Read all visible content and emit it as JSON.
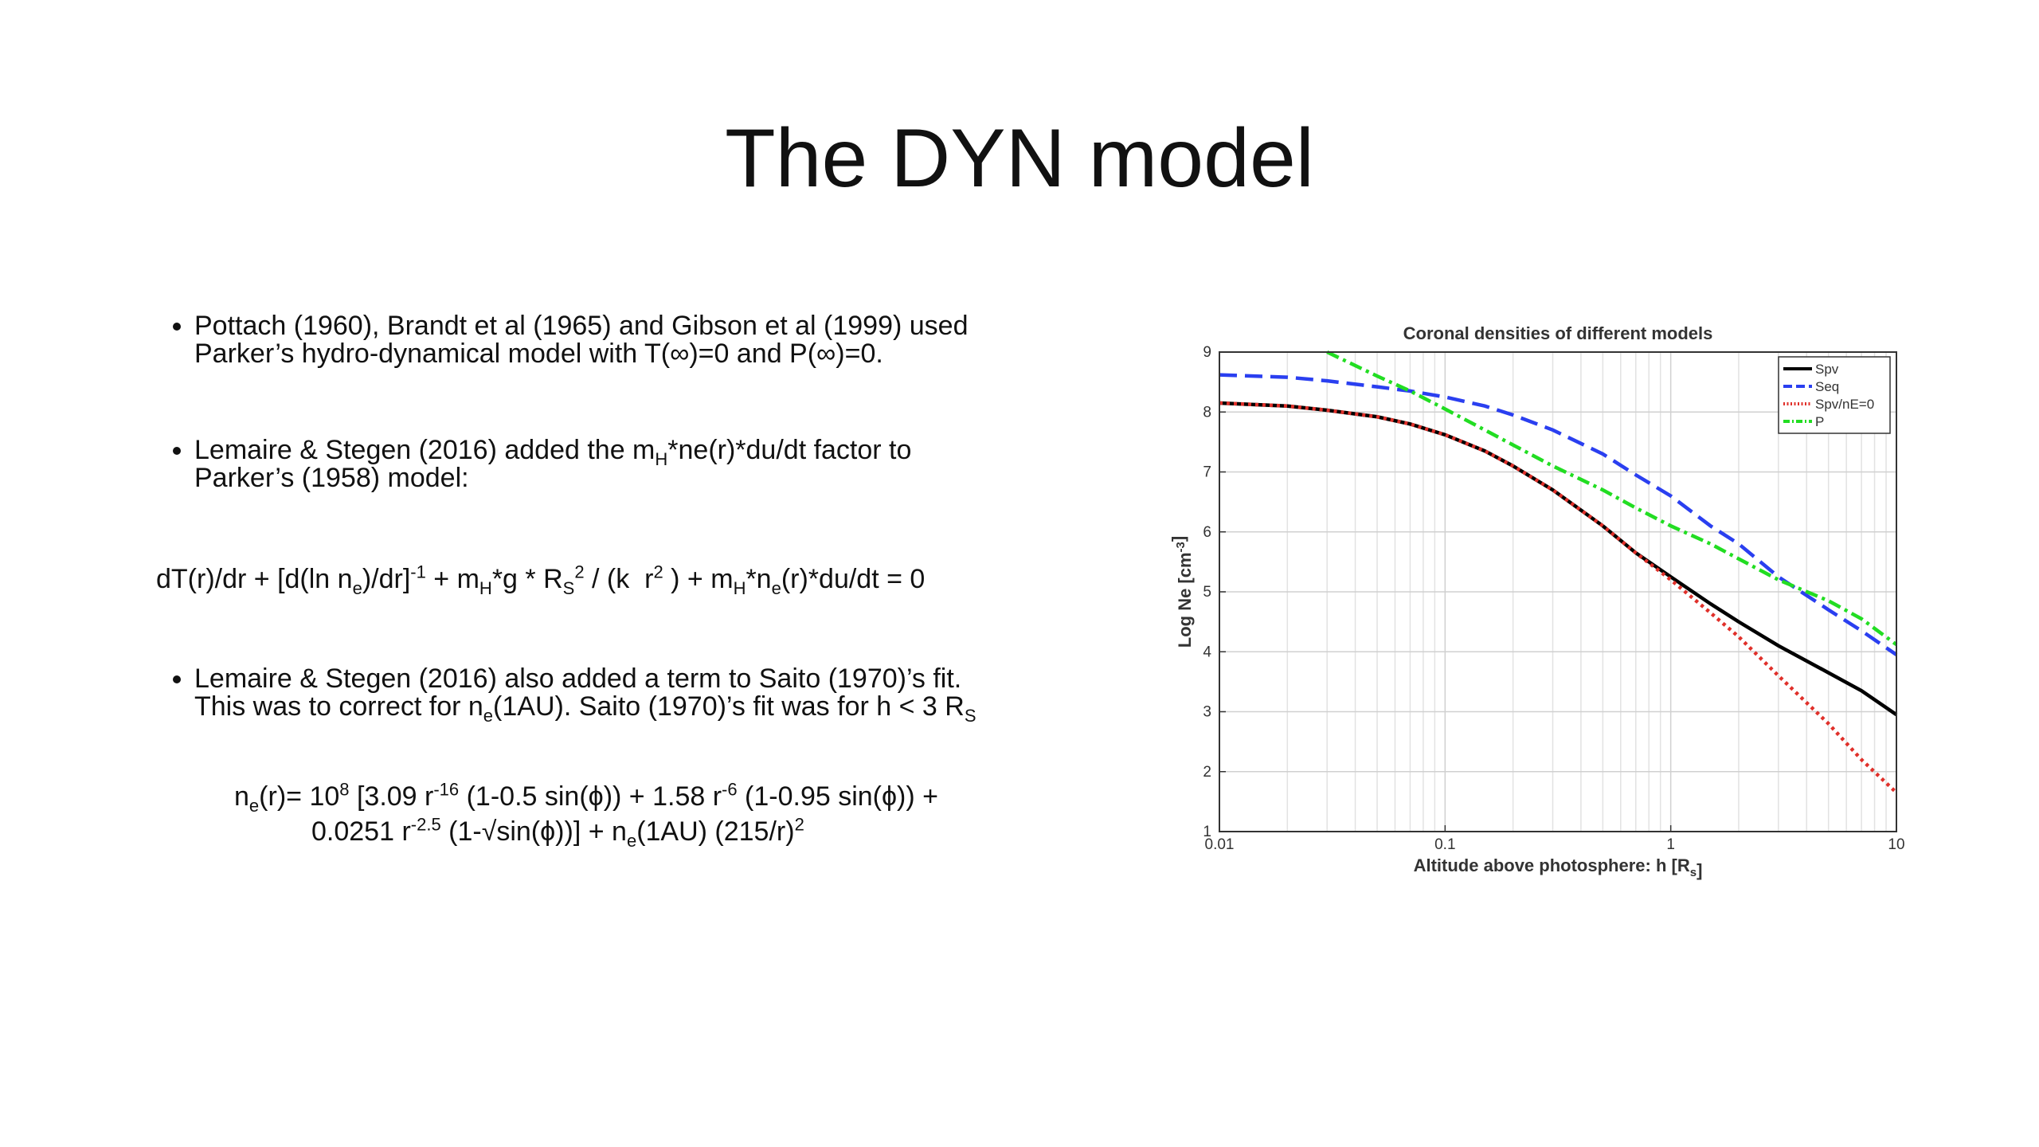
{
  "title": "The DYN model",
  "bullet_1": [
    [
      "Pottach (1960), Brandt et al (1965) and Gibson et al (1999) used"
    ],
    [
      "Parker’s hydro-dynamical model with T(∞)=0 and P(∞)=0."
    ]
  ],
  "bullet_2": [
    [
      "Lemaire & Stegen (2016) added the m",
      {
        "sub": "H"
      },
      "*ne(r)*du/dt factor to"
    ],
    [
      "Parker’s (1958) model:"
    ]
  ],
  "equation": [
    [
      "dT(r)/dr + [d(ln n",
      {
        "sub": "e"
      },
      ")/dr]",
      {
        "sup": "-1"
      },
      " + m",
      {
        "sub": "H"
      },
      "*g * R",
      {
        "sub": "S"
      },
      {
        "sup": "2"
      },
      " / (k  r",
      {
        "sup": "2"
      },
      " ) + m",
      {
        "sub": "H"
      },
      "*n",
      {
        "sub": "e"
      },
      "(r)*du/dt = 0"
    ]
  ],
  "bullet_3": [
    [
      "Lemaire & Stegen (2016) also added a term to Saito (1970)’s fit."
    ],
    [
      "This was to correct for n",
      {
        "sub": "e"
      },
      "(1AU). Saito (1970)’s fit was for h < 3 R",
      {
        "sub": "S"
      }
    ]
  ],
  "formula": [
    [
      "n",
      {
        "sub": "e"
      },
      "(r)= 10",
      {
        "sup": "8"
      },
      " [3.09 r",
      {
        "sup": "-16"
      },
      " (1-0.5 sin(ϕ)) + 1.58 r",
      {
        "sup": "-6"
      },
      " (1-0.95 sin(ϕ)) +"
    ],
    [
      "0.0251 r",
      {
        "sup": "-2.5"
      },
      " (1-√sin(ϕ))] + n",
      {
        "sub": "e"
      },
      "(1AU) (215/r)",
      {
        "sup": "2"
      }
    ]
  ],
  "chart_data": {
    "type": "line",
    "title": "Coronal densities of different models",
    "xlabel": [
      "Altitude above photosphere: h [R",
      {
        "sub": "s"
      },
      "]"
    ],
    "ylabel": [
      "Log Ne [cm",
      {
        "sup": "-3"
      },
      "]"
    ],
    "xscale": "log",
    "xlim": [
      0.01,
      10
    ],
    "ylim": [
      1,
      9
    ],
    "xticks": [
      0.01,
      0.1,
      1,
      10
    ],
    "yticks": [
      1,
      2,
      3,
      4,
      5,
      6,
      7,
      8,
      9
    ],
    "grid": true,
    "legend": "upper right",
    "x": [
      0.01,
      0.02,
      0.03,
      0.05,
      0.07,
      0.1,
      0.15,
      0.2,
      0.3,
      0.5,
      0.7,
      1,
      1.5,
      2,
      3,
      5,
      7,
      10
    ],
    "series": [
      {
        "name": "Spv",
        "color": "#000000",
        "style": "solid",
        "values": [
          8.15,
          8.1,
          8.03,
          7.92,
          7.8,
          7.62,
          7.35,
          7.1,
          6.7,
          6.1,
          5.65,
          5.25,
          4.8,
          4.5,
          4.1,
          3.65,
          3.35,
          2.95
        ]
      },
      {
        "name": "Seq",
        "color": "#2a3ff0",
        "style": "dashed",
        "values": [
          8.62,
          8.58,
          8.52,
          8.42,
          8.35,
          8.25,
          8.1,
          7.95,
          7.7,
          7.3,
          6.95,
          6.6,
          6.1,
          5.8,
          5.25,
          4.7,
          4.35,
          3.95
        ]
      },
      {
        "name": "Spv/nE=0",
        "color": "#e0302a",
        "style": "dotted",
        "values": [
          8.15,
          8.1,
          8.03,
          7.92,
          7.8,
          7.62,
          7.35,
          7.1,
          6.7,
          6.1,
          5.65,
          5.2,
          4.65,
          4.25,
          3.6,
          2.8,
          2.2,
          1.65
        ]
      },
      {
        "name": "P",
        "color": "#22dd22",
        "style": "dashdot",
        "values": [
          null,
          null,
          9.0,
          8.6,
          8.35,
          8.05,
          7.7,
          7.45,
          7.1,
          6.7,
          6.4,
          6.1,
          5.8,
          5.55,
          5.2,
          4.85,
          4.55,
          4.12
        ]
      }
    ]
  }
}
